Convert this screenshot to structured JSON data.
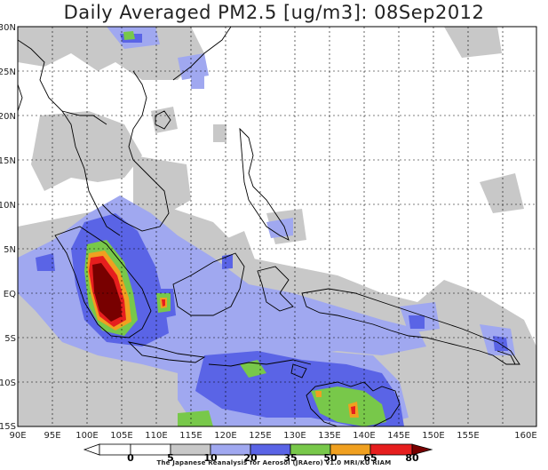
{
  "title": "Daily Averaged PM2.5 [ug/m3]: 08Sep2012",
  "map": {
    "lon_labels": [
      "90E",
      "95E",
      "100E",
      "105E",
      "110E",
      "115E",
      "120E",
      "125E",
      "130E",
      "135E",
      "140E",
      "145E",
      "150E",
      "155E",
      "160E"
    ],
    "lat_labels": [
      "30N",
      "25N",
      "20N",
      "15N",
      "10N",
      "5N",
      "EQ",
      "5S",
      "10S",
      "15S"
    ],
    "gridlines": true
  },
  "colorbar": {
    "ticks": [
      "0",
      "5",
      "10",
      "20",
      "35",
      "50",
      "65",
      "80"
    ],
    "colors": [
      "#ffffff",
      "#ffffff",
      "#c8c8c8",
      "#a0a8f0",
      "#5a64e6",
      "#78c84a",
      "#f0a020",
      "#e61e1e",
      "#780000"
    ],
    "credit": "The Japanese Reanalysis for Aerosol (JRAero) v1.0 MRI/KU RIAM"
  }
}
